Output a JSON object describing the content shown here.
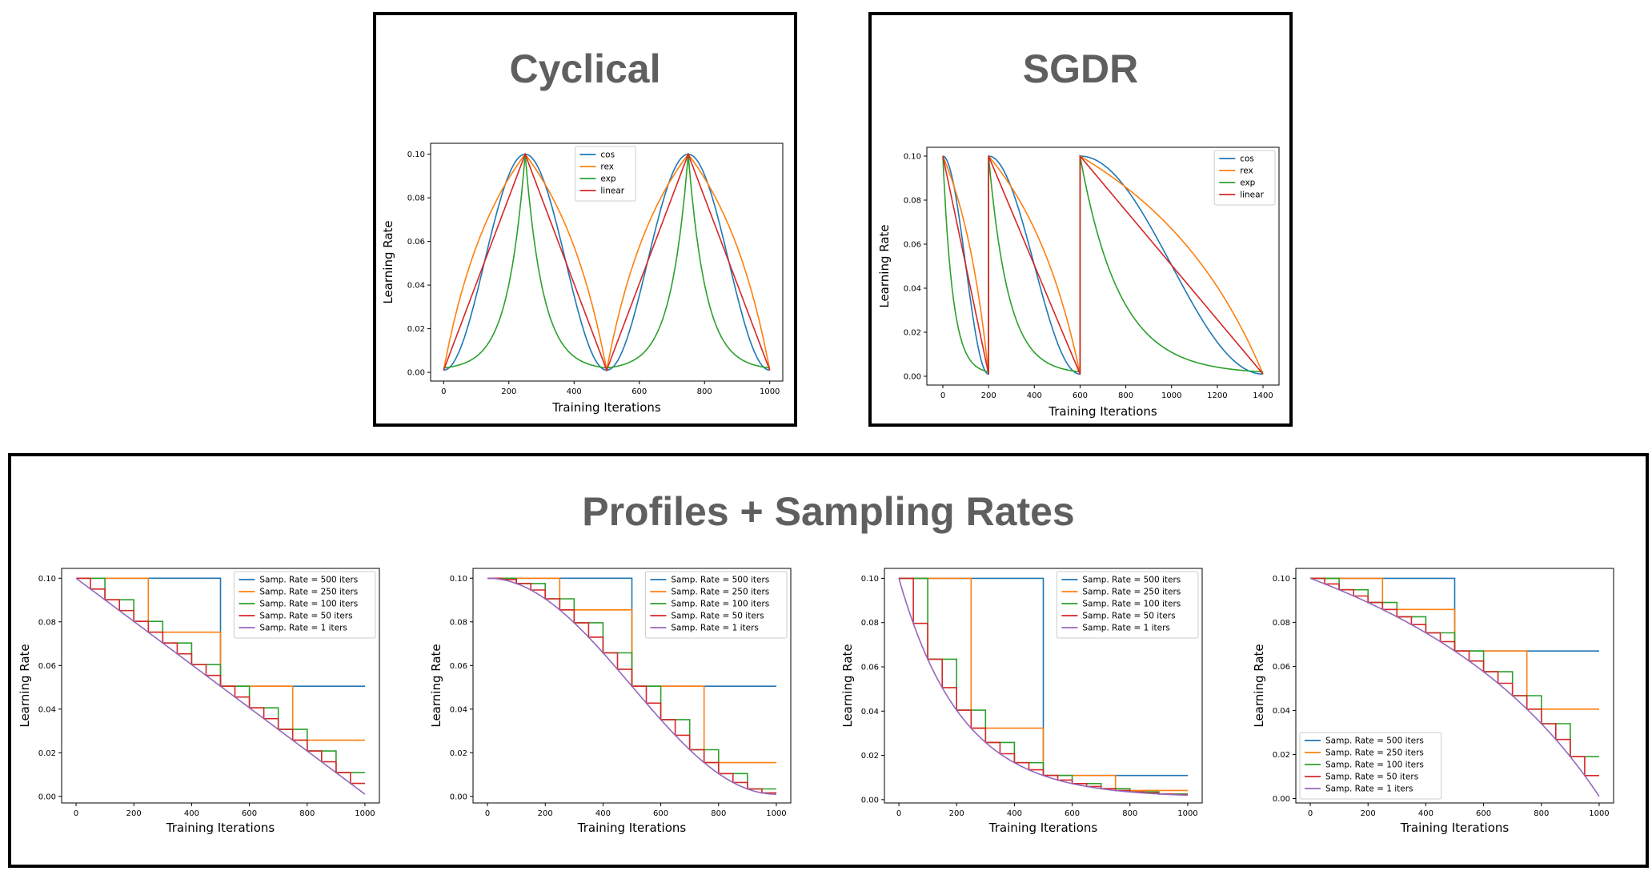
{
  "colors": {
    "cos": "#1f77b4",
    "rex": "#ff7f0e",
    "exp": "#2ca02c",
    "linear": "#d62728",
    "rate1": "#9467bd"
  },
  "panels": {
    "cyclical": {
      "title": "Cyclical"
    },
    "sgdr": {
      "title": "SGDR"
    },
    "sampling": {
      "title": "Profiles + Sampling Rates"
    }
  },
  "chart_data": [
    {
      "id": "cyclical",
      "type": "line",
      "title": "",
      "xlabel": "Training Iterations",
      "ylabel": "Learning Rate",
      "xlim": [
        -40,
        1040
      ],
      "ylim": [
        -0.004,
        0.105
      ],
      "xticks": [
        0,
        200,
        400,
        600,
        800,
        1000
      ],
      "xtick_labels": [
        "0",
        "200",
        "400",
        "600",
        "800",
        "1000"
      ],
      "yticks": [
        0.0,
        0.02,
        0.04,
        0.06,
        0.08,
        0.1
      ],
      "ytick_labels": [
        "0.00",
        "0.02",
        "0.04",
        "0.06",
        "0.08",
        "0.10"
      ],
      "legend": "top-center",
      "generator": {
        "kind": "cyclical",
        "period": 500,
        "lr_min": 0.001,
        "lr_max": 0.1,
        "x_max": 1000
      },
      "series": [
        {
          "name": "cos",
          "color_key": "cos"
        },
        {
          "name": "rex",
          "color_key": "rex"
        },
        {
          "name": "exp",
          "color_key": "exp"
        },
        {
          "name": "linear",
          "color_key": "linear"
        }
      ]
    },
    {
      "id": "sgdr",
      "type": "line",
      "title": "",
      "xlabel": "Training Iterations",
      "ylabel": "Learning Rate",
      "xlim": [
        -70,
        1470
      ],
      "ylim": [
        -0.004,
        0.104
      ],
      "xticks": [
        0,
        200,
        400,
        600,
        800,
        1000,
        1200,
        1400
      ],
      "xtick_labels": [
        "0",
        "200",
        "400",
        "600",
        "800",
        "1000",
        "1200",
        "1400"
      ],
      "yticks": [
        0.0,
        0.02,
        0.04,
        0.06,
        0.08,
        0.1
      ],
      "ytick_labels": [
        "0.00",
        "0.02",
        "0.04",
        "0.06",
        "0.08",
        "0.10"
      ],
      "legend": "top-right",
      "generator": {
        "kind": "sgdr",
        "restarts": [
          0,
          200,
          600,
          1400
        ],
        "lr_min": 0.001,
        "lr_max": 0.1
      },
      "series": [
        {
          "name": "cos",
          "color_key": "cos"
        },
        {
          "name": "rex",
          "color_key": "rex"
        },
        {
          "name": "exp",
          "color_key": "exp"
        },
        {
          "name": "linear",
          "color_key": "linear"
        }
      ]
    },
    {
      "id": "sampling_linear",
      "type": "line",
      "title": "",
      "xlabel": "Training Iterations",
      "ylabel": "Learning Rate",
      "xlim": [
        -50,
        1050
      ],
      "ylim": [
        -0.003,
        0.1045
      ],
      "xticks": [
        0,
        200,
        400,
        600,
        800,
        1000
      ],
      "xtick_labels": [
        "0",
        "200",
        "400",
        "600",
        "800",
        "1000"
      ],
      "yticks": [
        0.0,
        0.02,
        0.04,
        0.06,
        0.08,
        0.1
      ],
      "ytick_labels": [
        "0.00",
        "0.02",
        "0.04",
        "0.06",
        "0.08",
        "0.10"
      ],
      "legend": "top-right",
      "generator": {
        "kind": "sampling",
        "profile": "linear",
        "x_max": 1000
      },
      "series": [
        {
          "name": "Samp. Rate = 500 iters",
          "rate": 500,
          "color_key": "cos"
        },
        {
          "name": "Samp. Rate = 250 iters",
          "rate": 250,
          "color_key": "rex"
        },
        {
          "name": "Samp. Rate = 100 iters",
          "rate": 100,
          "color_key": "exp"
        },
        {
          "name": "Samp. Rate = 50 iters",
          "rate": 50,
          "color_key": "linear"
        },
        {
          "name": "Samp. Rate = 1 iters",
          "rate": 1,
          "color_key": "rate1"
        }
      ]
    },
    {
      "id": "sampling_cos",
      "type": "line",
      "title": "",
      "xlabel": "Training Iterations",
      "ylabel": "Learning Rate",
      "xlim": [
        -50,
        1050
      ],
      "ylim": [
        -0.003,
        0.1045
      ],
      "xticks": [
        0,
        200,
        400,
        600,
        800,
        1000
      ],
      "xtick_labels": [
        "0",
        "200",
        "400",
        "600",
        "800",
        "1000"
      ],
      "yticks": [
        0.0,
        0.02,
        0.04,
        0.06,
        0.08,
        0.1
      ],
      "ytick_labels": [
        "0.00",
        "0.02",
        "0.04",
        "0.06",
        "0.08",
        "0.10"
      ],
      "legend": "top-right",
      "generator": {
        "kind": "sampling",
        "profile": "cos",
        "x_max": 1000
      },
      "series": [
        {
          "name": "Samp. Rate = 500 iters",
          "rate": 500,
          "color_key": "cos"
        },
        {
          "name": "Samp. Rate = 250 iters",
          "rate": 250,
          "color_key": "rex"
        },
        {
          "name": "Samp. Rate = 100 iters",
          "rate": 100,
          "color_key": "exp"
        },
        {
          "name": "Samp. Rate = 50 iters",
          "rate": 50,
          "color_key": "linear"
        },
        {
          "name": "Samp. Rate = 1 iters",
          "rate": 1,
          "color_key": "rate1"
        }
      ]
    },
    {
      "id": "sampling_exp",
      "type": "line",
      "title": "",
      "xlabel": "Training Iterations",
      "ylabel": "Learning Rate",
      "xlim": [
        -50,
        1050
      ],
      "ylim": [
        -0.0015,
        0.1045
      ],
      "xticks": [
        0,
        200,
        400,
        600,
        800,
        1000
      ],
      "xtick_labels": [
        "0",
        "200",
        "400",
        "600",
        "800",
        "1000"
      ],
      "yticks": [
        0.0,
        0.02,
        0.04,
        0.06,
        0.08,
        0.1
      ],
      "ytick_labels": [
        "0.00",
        "0.02",
        "0.04",
        "0.06",
        "0.08",
        "0.10"
      ],
      "legend": "top-right",
      "generator": {
        "kind": "sampling",
        "profile": "exp",
        "x_max": 1000
      },
      "series": [
        {
          "name": "Samp. Rate = 500 iters",
          "rate": 500,
          "color_key": "cos"
        },
        {
          "name": "Samp. Rate = 250 iters",
          "rate": 250,
          "color_key": "rex"
        },
        {
          "name": "Samp. Rate = 100 iters",
          "rate": 100,
          "color_key": "exp"
        },
        {
          "name": "Samp. Rate = 50 iters",
          "rate": 50,
          "color_key": "linear"
        },
        {
          "name": "Samp. Rate = 1 iters",
          "rate": 1,
          "color_key": "rate1"
        }
      ]
    },
    {
      "id": "sampling_rex",
      "type": "line",
      "title": "",
      "xlabel": "Training Iterations",
      "ylabel": "Learning Rate",
      "xlim": [
        -50,
        1050
      ],
      "ylim": [
        -0.002,
        0.1045
      ],
      "xticks": [
        0,
        200,
        400,
        600,
        800,
        1000
      ],
      "xtick_labels": [
        "0",
        "200",
        "400",
        "600",
        "800",
        "1000"
      ],
      "yticks": [
        0.0,
        0.02,
        0.04,
        0.06,
        0.08,
        0.1
      ],
      "ytick_labels": [
        "0.00",
        "0.02",
        "0.04",
        "0.06",
        "0.08",
        "0.10"
      ],
      "legend": "bottom-left",
      "generator": {
        "kind": "sampling",
        "profile": "rex",
        "x_max": 1000
      },
      "series": [
        {
          "name": "Samp. Rate = 500 iters",
          "rate": 500,
          "color_key": "cos"
        },
        {
          "name": "Samp. Rate = 250 iters",
          "rate": 250,
          "color_key": "rex"
        },
        {
          "name": "Samp. Rate = 100 iters",
          "rate": 100,
          "color_key": "exp"
        },
        {
          "name": "Samp. Rate = 50 iters",
          "rate": 50,
          "color_key": "linear"
        },
        {
          "name": "Samp. Rate = 1 iters",
          "rate": 1,
          "color_key": "rate1"
        }
      ]
    }
  ]
}
